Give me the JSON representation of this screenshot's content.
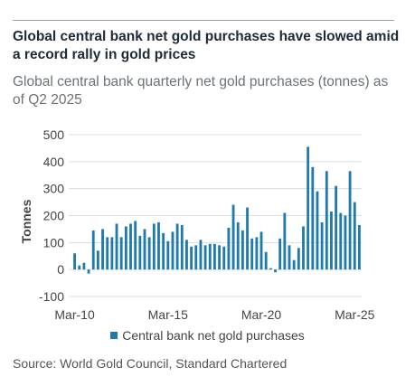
{
  "header": {
    "title": "Global central bank net gold purchases have slowed amid a record rally in gold prices",
    "subtitle": "Global central bank quarterly net gold purchases (tonnes) as of Q2 2025"
  },
  "footer": {
    "source": "Source: World Gold Council, Standard Chartered"
  },
  "colors": {
    "bar": "#1f7bab",
    "grid": "#d9dde0",
    "text": "#444444"
  },
  "chart_data": {
    "type": "bar",
    "title": "Global central bank net gold purchases have slowed amid a record rally in gold prices",
    "subtitle": "Global central bank quarterly net gold purchases (tonnes) as of Q2 2025",
    "xlabel": "",
    "ylabel": "Tonnes",
    "ylim": [
      -100,
      500
    ],
    "yticks": [
      -100,
      0,
      100,
      200,
      300,
      400,
      500
    ],
    "xtick_labels": [
      "Mar-10",
      "Mar-15",
      "Mar-20",
      "Mar-25"
    ],
    "xtick_quarters": [
      "2010-Q1",
      "2015-Q1",
      "2020-Q1",
      "2025-Q1"
    ],
    "grid": true,
    "legend_position": "bottom",
    "categories": [
      "2010-Q1",
      "2010-Q2",
      "2010-Q3",
      "2010-Q4",
      "2011-Q1",
      "2011-Q2",
      "2011-Q3",
      "2011-Q4",
      "2012-Q1",
      "2012-Q2",
      "2012-Q3",
      "2012-Q4",
      "2013-Q1",
      "2013-Q2",
      "2013-Q3",
      "2013-Q4",
      "2014-Q1",
      "2014-Q2",
      "2014-Q3",
      "2014-Q4",
      "2015-Q1",
      "2015-Q2",
      "2015-Q3",
      "2015-Q4",
      "2016-Q1",
      "2016-Q2",
      "2016-Q3",
      "2016-Q4",
      "2017-Q1",
      "2017-Q2",
      "2017-Q3",
      "2017-Q4",
      "2018-Q1",
      "2018-Q2",
      "2018-Q3",
      "2018-Q4",
      "2019-Q1",
      "2019-Q2",
      "2019-Q3",
      "2019-Q4",
      "2020-Q1",
      "2020-Q2",
      "2020-Q3",
      "2020-Q4",
      "2021-Q1",
      "2021-Q2",
      "2021-Q3",
      "2021-Q4",
      "2022-Q1",
      "2022-Q2",
      "2022-Q3",
      "2022-Q4",
      "2023-Q1",
      "2023-Q2",
      "2023-Q3",
      "2023-Q4",
      "2024-Q1",
      "2024-Q2",
      "2024-Q3",
      "2024-Q4",
      "2025-Q1",
      "2025-Q2"
    ],
    "series": [
      {
        "name": "Central bank net gold purchases",
        "values": [
          60,
          15,
          25,
          -15,
          145,
          70,
          150,
          120,
          120,
          170,
          120,
          160,
          170,
          180,
          125,
          150,
          120,
          170,
          175,
          135,
          105,
          140,
          170,
          165,
          110,
          85,
          90,
          110,
          90,
          95,
          95,
          90,
          85,
          155,
          240,
          175,
          145,
          230,
          115,
          120,
          140,
          65,
          5,
          -10,
          115,
          210,
          90,
          35,
          80,
          160,
          455,
          380,
          290,
          175,
          365,
          215,
          310,
          210,
          200,
          365,
          250,
          165
        ]
      }
    ]
  }
}
